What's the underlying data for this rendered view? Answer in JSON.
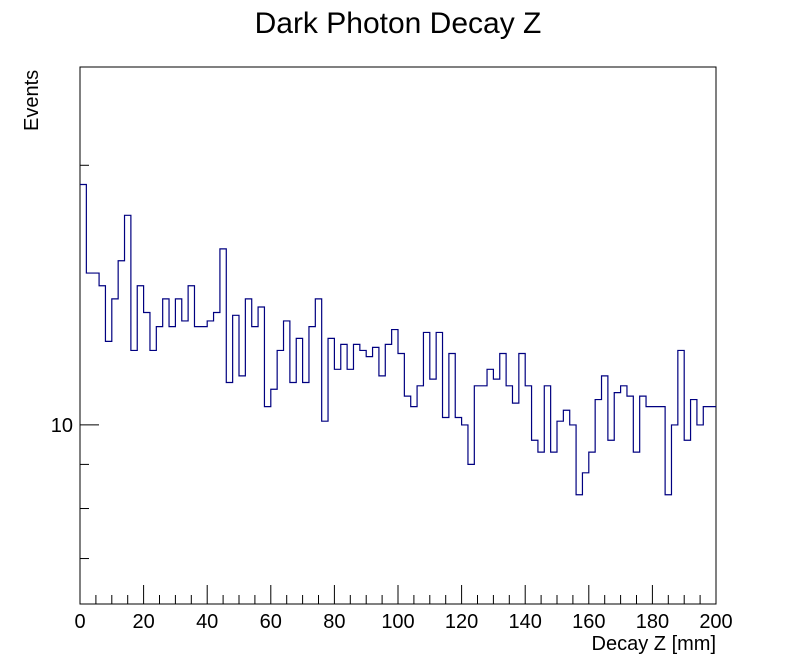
{
  "chart_data": {
    "type": "histogram",
    "title": "Dark Photon Decay Z",
    "xlabel": "Decay Z [mm]",
    "ylabel": "Events",
    "xlim": [
      0,
      200
    ],
    "ylim": [
      6.2,
      26
    ],
    "yscale": "log",
    "bin_width": 2,
    "x_ticks": [
      0,
      20,
      40,
      60,
      80,
      100,
      120,
      140,
      160,
      180,
      200
    ],
    "x_tick_labels": [
      "0",
      "20",
      "40",
      "60",
      "80",
      "100",
      "120",
      "140",
      "160",
      "180",
      "200"
    ],
    "y_ticks": [
      10
    ],
    "y_tick_labels": [
      "10"
    ],
    "line_color": "#000080",
    "values": [
      19,
      15,
      15,
      14.5,
      12.5,
      14,
      15.5,
      17.5,
      12.2,
      14.5,
      13.5,
      12.2,
      13,
      14,
      13,
      14,
      13.2,
      14.5,
      13,
      13,
      13.2,
      13.5,
      16,
      11.2,
      13.4,
      11.4,
      14,
      13,
      13.7,
      10.5,
      11,
      12.2,
      13.2,
      11.2,
      12.6,
      11.2,
      13.0,
      14.0,
      10.1,
      12.6,
      11.6,
      12.4,
      11.6,
      12.4,
      12.2,
      12.0,
      12.3,
      11.4,
      12.4,
      12.9,
      12.1,
      10.8,
      10.5,
      11.1,
      12.8,
      11.3,
      12.8,
      10.2,
      12.1,
      10.2,
      10.0,
      9.0,
      11.1,
      11.1,
      11.6,
      11.3,
      12.1,
      11.1,
      10.6,
      12.1,
      11.1,
      9.6,
      9.3,
      11.1,
      9.3,
      10.1,
      10.4,
      10.0,
      8.3,
      8.8,
      9.3,
      10.7,
      11.4,
      9.6,
      10.9,
      11.1,
      10.8,
      9.3,
      10.8,
      10.5,
      10.5,
      10.5,
      8.3,
      10.0,
      12.2,
      9.6,
      10.7,
      10.0,
      10.5,
      10.5
    ]
  }
}
